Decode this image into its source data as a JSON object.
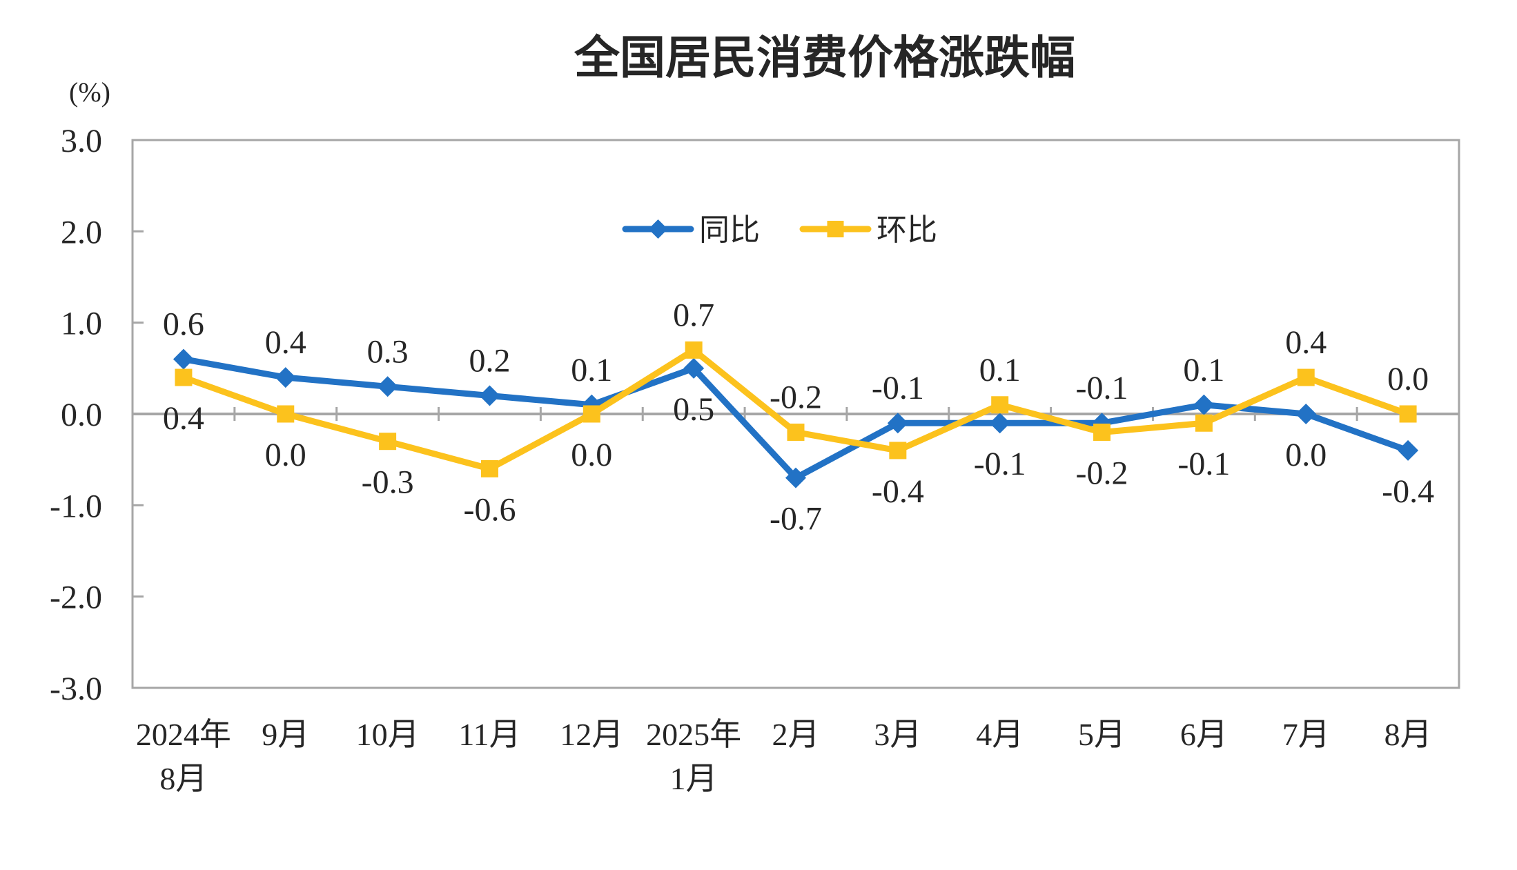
{
  "title": "全国居民消费价格涨跌幅",
  "ylabel": "(%)",
  "chart_data": {
    "type": "line",
    "categories": [
      [
        "2024年",
        "8月"
      ],
      [
        "9月"
      ],
      [
        "10月"
      ],
      [
        "11月"
      ],
      [
        "12月"
      ],
      [
        "2025年",
        "1月"
      ],
      [
        "2月"
      ],
      [
        "3月"
      ],
      [
        "4月"
      ],
      [
        "5月"
      ],
      [
        "6月"
      ],
      [
        "7月"
      ],
      [
        "8月"
      ]
    ],
    "series": [
      {
        "name": "同比",
        "color": "#2272C5",
        "marker": "diamond",
        "values": [
          0.6,
          0.4,
          0.3,
          0.2,
          0.1,
          0.5,
          -0.7,
          -0.1,
          -0.1,
          -0.1,
          0.1,
          0.0,
          -0.4
        ],
        "labels": [
          "0.6",
          "0.4",
          "0.3",
          "0.2",
          "0.1",
          "0.5",
          "-0.7",
          "-0.1",
          "-0.1",
          "-0.1",
          "0.1",
          "0.0",
          "-0.4"
        ]
      },
      {
        "name": "环比",
        "color": "#FCC21D",
        "marker": "square",
        "values": [
          0.4,
          0.0,
          -0.3,
          -0.6,
          0.0,
          0.7,
          -0.2,
          -0.4,
          0.1,
          -0.2,
          -0.1,
          0.4,
          0.0
        ],
        "labels": [
          "0.4",
          "0.0",
          "-0.3",
          "-0.6",
          "0.0",
          "0.7",
          "-0.2",
          "-0.4",
          "0.1",
          "-0.2",
          "-0.1",
          "0.4",
          "0.0"
        ]
      }
    ],
    "ylim": [
      -3.0,
      3.0
    ],
    "yticks": [
      "3.0",
      "2.0",
      "1.0",
      "0.0",
      "-1.0",
      "-2.0",
      "-3.0"
    ],
    "legend_position": "top-center",
    "grid": "zero-line-only",
    "axis_color": "#A6A6A6",
    "text_color": "#262626"
  }
}
